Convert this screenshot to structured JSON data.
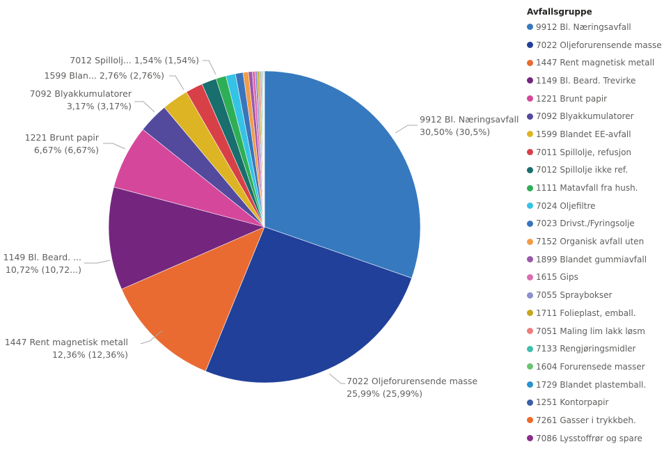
{
  "chart_data": {
    "type": "pie",
    "legend_title": "Avfallsgruppe",
    "legend_position": "right",
    "slices": [
      {
        "name": "9912 Bl. Næringsavfall",
        "value": 30.5,
        "color": "#3679BF",
        "label_line1": "9912 Bl. Næringsavfall",
        "label_line2": "30,50% (30,5%)"
      },
      {
        "name": "7022 Oljeforurensende masse",
        "value": 25.99,
        "color": "#21409A",
        "label_line1": "7022 Oljeforurensende masse",
        "label_line2": "25,99% (25,99%)"
      },
      {
        "name": "1447 Rent magnetisk metall",
        "value": 12.36,
        "color": "#E96B32",
        "label_line1": "1447 Rent magnetisk metall",
        "label_line2": "12,36% (12,36%)"
      },
      {
        "name": "1149 Bl. Beard. Trevirke",
        "value": 10.72,
        "color": "#74267F",
        "label_line1": "1149 Bl. Beard. ...",
        "label_line2": "10,72% (10,72...)"
      },
      {
        "name": "1221 Brunt papir",
        "value": 6.67,
        "color": "#D5479B",
        "label_line1": "1221 Brunt papir",
        "label_line2": "6,67% (6,67%)"
      },
      {
        "name": "7092 Blyakkumulatorer",
        "value": 3.17,
        "color": "#534A9E",
        "label_line1": "7092 Blyakkumulatorer",
        "label_line2": "3,17% (3,17%)"
      },
      {
        "name": "1599 Blandet EE-avfall",
        "value": 2.76,
        "color": "#DDB524",
        "label_line1": "1599 Blan... 2,76% (2,76%)",
        "label_line2": ""
      },
      {
        "name": "7011 Spillolje, refusjon",
        "value": 1.8,
        "color": "#D84048",
        "label_line1": "",
        "label_line2": ""
      },
      {
        "name": "7012 Spillolje ikke ref.",
        "value": 1.54,
        "color": "#196E6E",
        "label_line1": "7012 Spillolj... 1,54% (1,54%)",
        "label_line2": ""
      },
      {
        "name": "1111 Matavfall fra hush.",
        "value": 1.05,
        "color": "#2EAE55",
        "label_line1": "",
        "label_line2": ""
      },
      {
        "name": "7024 Oljefiltre",
        "value": 1.0,
        "color": "#35C3E5",
        "label_line1": "",
        "label_line2": ""
      },
      {
        "name": "7023 Drivst./Fyringsolje",
        "value": 0.8,
        "color": "#3B74BC",
        "label_line1": "",
        "label_line2": ""
      },
      {
        "name": "7152 Organisk avfall uten",
        "value": 0.55,
        "color": "#F09D48",
        "label_line1": "",
        "label_line2": ""
      },
      {
        "name": "1899 Blandet gummiavfall",
        "value": 0.4,
        "color": "#9B58AA",
        "label_line1": "",
        "label_line2": ""
      },
      {
        "name": "1615 Gips",
        "value": 0.3,
        "color": "#DD6CAF",
        "label_line1": "",
        "label_line2": ""
      },
      {
        "name": "7055 Spraybokser",
        "value": 0.22,
        "color": "#8C8FD0",
        "label_line1": "",
        "label_line2": ""
      },
      {
        "name": "1711 Folieplast, emball.",
        "value": 0.18,
        "color": "#C4A71F",
        "label_line1": "",
        "label_line2": ""
      },
      {
        "name": "7051 Maling lim lakk løsm",
        "value": 0.14,
        "color": "#EC7F7C",
        "label_line1": "",
        "label_line2": ""
      },
      {
        "name": "7133 Rengjøringsmidler",
        "value": 0.11,
        "color": "#3FBFAD",
        "label_line1": "",
        "label_line2": ""
      },
      {
        "name": "1604 Forurensede masser",
        "value": 0.09,
        "color": "#6CC371",
        "label_line1": "",
        "label_line2": ""
      },
      {
        "name": "1729 Blandet plastemball.",
        "value": 0.07,
        "color": "#2B91D0",
        "label_line1": "",
        "label_line2": ""
      },
      {
        "name": "1251 Kontorpapir",
        "value": 0.06,
        "color": "#3A5FA8",
        "label_line1": "",
        "label_line2": ""
      },
      {
        "name": "7261 Gasser i trykkbeh.",
        "value": 0.05,
        "color": "#EE6A2A",
        "label_line1": "",
        "label_line2": ""
      },
      {
        "name": "7086 Lysstoffrør og spare",
        "value": 0.04,
        "color": "#8C2D8B",
        "label_line1": "",
        "label_line2": ""
      }
    ]
  }
}
